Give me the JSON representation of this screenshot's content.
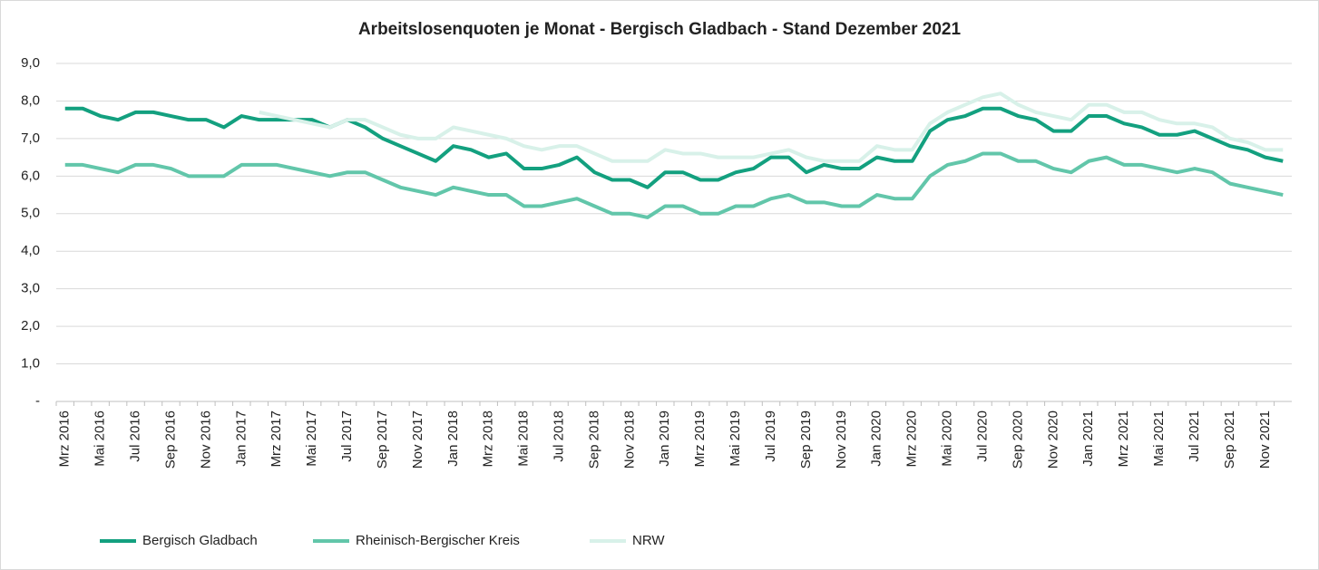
{
  "chart_data": {
    "type": "line",
    "title": "Arbeitslosenquoten je Monat - Bergisch Gladbach  - Stand Dezember 2021",
    "categories": [
      "Mrz 2016",
      null,
      "Mai 2016",
      null,
      "Jul 2016",
      null,
      "Sep 2016",
      null,
      "Nov 2016",
      null,
      "Jan 2017",
      null,
      "Mrz 2017",
      null,
      "Mai 2017",
      null,
      "Jul 2017",
      null,
      "Sep 2017",
      null,
      "Nov 2017",
      null,
      "Jan 2018",
      null,
      "Mrz 2018",
      null,
      "Mai 2018",
      null,
      "Jul 2018",
      null,
      "Sep 2018",
      null,
      "Nov 2018",
      null,
      "Jan 2019",
      null,
      "Mrz 2019",
      null,
      "Mai 2019",
      null,
      "Jul 2019",
      null,
      "Sep 2019",
      null,
      "Nov 2019",
      null,
      "Jan 2020",
      null,
      "Mrz 2020",
      null,
      "Mai 2020",
      null,
      "Jul 2020",
      null,
      "Sep 2020",
      null,
      "Nov 2020",
      null,
      "Jan 2021",
      null,
      "Mrz 2021",
      null,
      "Mai 2021",
      null,
      "Jul 2021",
      null,
      "Sep 2021",
      null,
      "Nov 2021",
      null
    ],
    "series": [
      {
        "name": "Bergisch Gladbach",
        "color": "#13a07f",
        "values": [
          7.8,
          7.8,
          7.6,
          7.5,
          7.7,
          7.7,
          7.6,
          7.5,
          7.5,
          7.3,
          7.6,
          7.5,
          7.5,
          7.5,
          7.5,
          7.3,
          7.5,
          7.3,
          7.0,
          6.8,
          6.6,
          6.4,
          6.8,
          6.7,
          6.5,
          6.6,
          6.2,
          6.2,
          6.3,
          6.5,
          6.1,
          5.9,
          5.9,
          5.7,
          6.1,
          6.1,
          5.9,
          5.9,
          6.1,
          6.2,
          6.5,
          6.5,
          6.1,
          6.3,
          6.2,
          6.2,
          6.5,
          6.4,
          6.4,
          7.2,
          7.5,
          7.6,
          7.8,
          7.8,
          7.6,
          7.5,
          7.2,
          7.2,
          7.6,
          7.6,
          7.4,
          7.3,
          7.1,
          7.1,
          7.2,
          7.0,
          6.8,
          6.7,
          6.5,
          6.4
        ]
      },
      {
        "name": "Rheinisch-Bergischer Kreis",
        "color": "#62c6aa",
        "values": [
          6.3,
          6.3,
          6.2,
          6.1,
          6.3,
          6.3,
          6.2,
          6.0,
          6.0,
          6.0,
          6.3,
          6.3,
          6.3,
          6.2,
          6.1,
          6.0,
          6.1,
          6.1,
          5.9,
          5.7,
          5.6,
          5.5,
          5.7,
          5.6,
          5.5,
          5.5,
          5.2,
          5.2,
          5.3,
          5.4,
          5.2,
          5.0,
          5.0,
          4.9,
          5.2,
          5.2,
          5.0,
          5.0,
          5.2,
          5.2,
          5.4,
          5.5,
          5.3,
          5.3,
          5.2,
          5.2,
          5.5,
          5.4,
          5.4,
          6.0,
          6.3,
          6.4,
          6.6,
          6.6,
          6.4,
          6.4,
          6.2,
          6.1,
          6.4,
          6.5,
          6.3,
          6.3,
          6.2,
          6.1,
          6.2,
          6.1,
          5.8,
          5.7,
          5.6,
          5.5
        ]
      },
      {
        "name": "NRW",
        "color": "#d8f1e9",
        "values": [
          null,
          null,
          null,
          null,
          null,
          null,
          null,
          null,
          null,
          null,
          null,
          7.7,
          7.6,
          7.5,
          7.4,
          7.3,
          7.5,
          7.5,
          7.3,
          7.1,
          7.0,
          7.0,
          7.3,
          7.2,
          7.1,
          7.0,
          6.8,
          6.7,
          6.8,
          6.8,
          6.6,
          6.4,
          6.4,
          6.4,
          6.7,
          6.6,
          6.6,
          6.5,
          6.5,
          6.5,
          6.6,
          6.7,
          6.5,
          6.4,
          6.4,
          6.4,
          6.8,
          6.7,
          6.7,
          7.4,
          7.7,
          7.9,
          8.1,
          8.2,
          7.9,
          7.7,
          7.6,
          7.5,
          7.9,
          7.9,
          7.7,
          7.7,
          7.5,
          7.4,
          7.4,
          7.3,
          7.0,
          6.9,
          6.7,
          6.7
        ]
      }
    ],
    "ylim": [
      0,
      9
    ],
    "yticks": [
      {
        "value": 0,
        "label": "-"
      },
      {
        "value": 1,
        "label": "1,0"
      },
      {
        "value": 2,
        "label": "2,0"
      },
      {
        "value": 3,
        "label": "3,0"
      },
      {
        "value": 4,
        "label": "4,0"
      },
      {
        "value": 5,
        "label": "5,0"
      },
      {
        "value": 6,
        "label": "6,0"
      },
      {
        "value": 7,
        "label": "7,0"
      },
      {
        "value": 8,
        "label": "8,0"
      },
      {
        "value": 9,
        "label": "9,0"
      }
    ],
    "grid": true,
    "legend": "bottom"
  }
}
